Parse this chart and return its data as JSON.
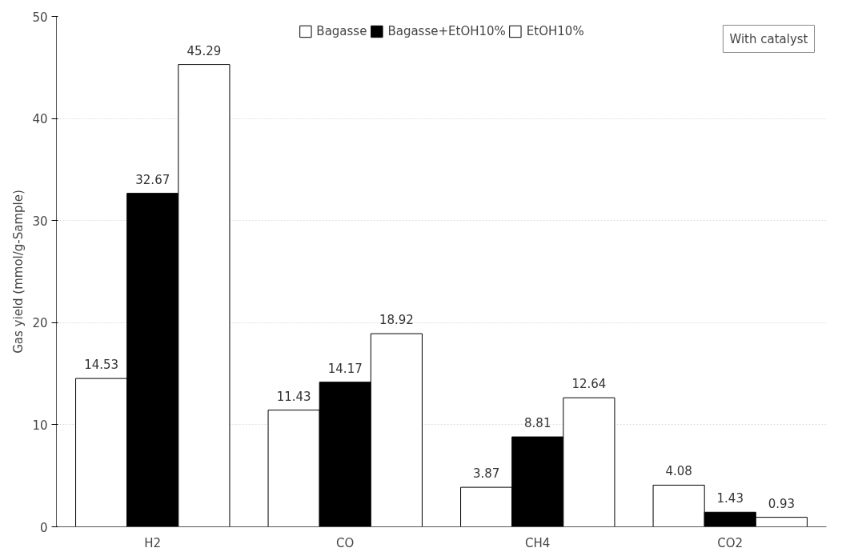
{
  "chart_data": {
    "type": "bar",
    "ylabel": "Gas yield (mmol/g-Sample)",
    "categories": [
      "H2",
      "CO",
      "CH4",
      "CO2"
    ],
    "series": [
      {
        "name": "Bagasse",
        "color": "#ffffff",
        "values": [
          14.53,
          11.43,
          3.87,
          4.08
        ]
      },
      {
        "name": "Bagasse+EtOH10%",
        "color": "#000000",
        "values": [
          32.67,
          14.17,
          8.81,
          1.43
        ]
      },
      {
        "name": "EtOH10%",
        "color": "#ffffff",
        "values": [
          45.29,
          18.92,
          12.64,
          0.93
        ]
      }
    ],
    "ylim": [
      0,
      50
    ],
    "yticks": [
      0,
      10,
      20,
      30,
      40,
      50
    ],
    "grid": "y",
    "legend": "top",
    "data_labels": true,
    "annotations": [
      "With catalyst"
    ]
  }
}
